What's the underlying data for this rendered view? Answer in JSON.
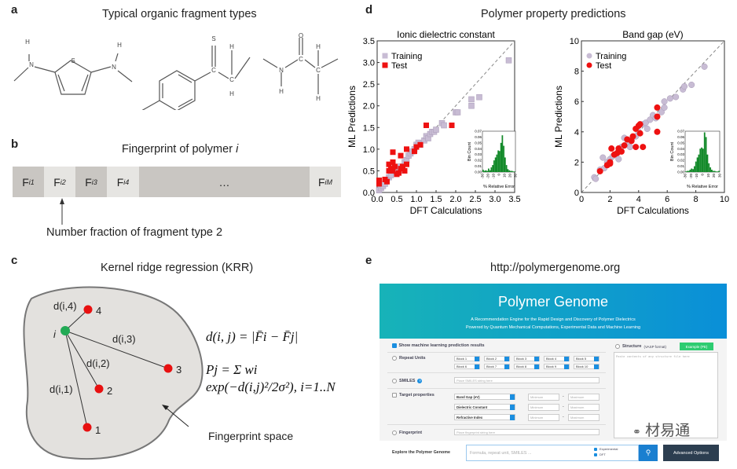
{
  "panels": {
    "a": {
      "letter": "a",
      "title": "Typical organic fragment types",
      "atoms": {
        "H": "H",
        "N": "N",
        "S": "S",
        "C": "C",
        "O": "O"
      }
    },
    "b": {
      "letter": "b",
      "title": "Fingerprint of polymer ",
      "title_var": "i",
      "cells": [
        {
          "F": "F",
          "sub": "i1"
        },
        {
          "F": "F",
          "sub": "i2"
        },
        {
          "F": "F",
          "sub": "i3"
        },
        {
          "F": "F",
          "sub": "i4"
        },
        {
          "F": "…",
          "sub": ""
        },
        {
          "F": "F",
          "sub": "iM"
        }
      ],
      "caption": "Number fraction of fragment type 2"
    },
    "c": {
      "letter": "c",
      "title": "Kernel ridge regression (KRR)",
      "points": {
        "i": "i",
        "p1": "1",
        "p2": "2",
        "p3": "3",
        "p4": "4"
      },
      "distances": {
        "d1": "d(i,1)",
        "d2": "d(i,2)",
        "d3": "d(i,3)",
        "d4": "d(i,4)"
      },
      "formula1": "d(i, j) = |F̄i − F̄j|",
      "formula2": "Pj = Σ wi exp(−d(i,j)²/2σ²), i=1..N",
      "space_label": "Fingerprint space",
      "colors": {
        "i": "#22aa55",
        "points": "#e81010"
      }
    },
    "d": {
      "letter": "d",
      "title": "Polymer property predictions"
    },
    "e": {
      "letter": "e",
      "title": "http://polymergenome.org"
    }
  },
  "chart_data": [
    {
      "type": "scatter",
      "title": "Ionic dielectric constant",
      "xlabel": "DFT Calculations",
      "ylabel": "ML Predictions",
      "xlim": [
        0,
        3.5
      ],
      "ylim": [
        0,
        3.5
      ],
      "ticks": [
        "0.0",
        "0.5",
        "1.0",
        "1.5",
        "2.0",
        "2.5",
        "3.0",
        "3.5"
      ],
      "marker": "square",
      "legend_position": "top-left",
      "diagonal": true,
      "series": [
        {
          "name": "Training",
          "color": "#c8bcd4",
          "points": [
            [
              0.05,
              0.05
            ],
            [
              0.1,
              0.1
            ],
            [
              0.15,
              0.15
            ],
            [
              0.2,
              0.2
            ],
            [
              0.3,
              0.35
            ],
            [
              0.35,
              0.4
            ],
            [
              0.45,
              0.5
            ],
            [
              0.5,
              0.55
            ],
            [
              0.55,
              0.5
            ],
            [
              0.6,
              0.6
            ],
            [
              0.7,
              0.7
            ],
            [
              0.75,
              0.75
            ],
            [
              0.8,
              0.85
            ],
            [
              0.85,
              0.9
            ],
            [
              0.9,
              0.95
            ],
            [
              0.95,
              1.0
            ],
            [
              1.0,
              1.1
            ],
            [
              1.05,
              1.15
            ],
            [
              1.1,
              1.1
            ],
            [
              1.2,
              1.2
            ],
            [
              1.25,
              1.3
            ],
            [
              1.3,
              1.25
            ],
            [
              1.35,
              1.35
            ],
            [
              1.4,
              1.4
            ],
            [
              1.45,
              1.4
            ],
            [
              1.5,
              1.45
            ],
            [
              1.65,
              1.6
            ],
            [
              1.7,
              1.55
            ],
            [
              2.0,
              1.85
            ],
            [
              2.05,
              1.85
            ],
            [
              2.4,
              2.0
            ],
            [
              2.4,
              2.15
            ],
            [
              2.6,
              2.2
            ],
            [
              3.35,
              3.05
            ]
          ]
        },
        {
          "name": "Test",
          "color": "#ee1111",
          "points": [
            [
              0.05,
              0.2
            ],
            [
              0.05,
              0.28
            ],
            [
              0.2,
              0.3
            ],
            [
              0.25,
              0.25
            ],
            [
              0.3,
              0.5
            ],
            [
              0.3,
              0.65
            ],
            [
              0.35,
              0.55
            ],
            [
              0.4,
              0.7
            ],
            [
              0.4,
              0.93
            ],
            [
              0.4,
              0.5
            ],
            [
              0.45,
              0.6
            ],
            [
              0.5,
              0.42
            ],
            [
              0.55,
              0.45
            ],
            [
              0.6,
              0.55
            ],
            [
              0.6,
              0.85
            ],
            [
              0.65,
              0.6
            ],
            [
              0.7,
              0.5
            ],
            [
              0.75,
              1.0
            ],
            [
              0.75,
              0.65
            ],
            [
              0.95,
              0.95
            ],
            [
              1.0,
              1.05
            ],
            [
              1.1,
              1.1
            ],
            [
              1.25,
              1.55
            ],
            [
              1.9,
              1.55
            ]
          ]
        }
      ],
      "inset": {
        "type": "bar",
        "xlabel": "% Relative Error",
        "ylabel": "Bin Count",
        "xlim": [
          -30,
          30
        ],
        "ylim": [
          0,
          0.07
        ],
        "yticks": [
          "0.00",
          "0.01",
          "0.02",
          "0.03",
          "0.04",
          "0.05",
          "0.06",
          "0.07"
        ],
        "xticks": [
          "-30",
          "-20",
          "-10",
          "0",
          "10",
          "20",
          "30"
        ],
        "color": "#138a2a",
        "bin_start": -30,
        "bin_width": 2.5,
        "values": [
          0.004,
          0.002,
          0.003,
          0.002,
          0.006,
          0.003,
          0.008,
          0.012,
          0.02,
          0.025,
          0.03,
          0.037,
          0.036,
          0.05,
          0.063,
          0.045,
          0.025,
          0.012,
          0.005,
          0.003,
          0.002,
          0.002,
          0.001,
          0.001
        ]
      }
    },
    {
      "type": "scatter",
      "title": "Band gap (eV)",
      "xlabel": "DFT Calculations",
      "ylabel": "ML Predictions",
      "xlim": [
        0,
        10
      ],
      "ylim": [
        0,
        10
      ],
      "ticks": [
        "0",
        "2",
        "4",
        "6",
        "8",
        "10"
      ],
      "marker": "circle",
      "legend_position": "top-left",
      "diagonal": true,
      "series": [
        {
          "name": "Training",
          "color": "#c8bcd4",
          "points": [
            [
              0.9,
              1.0
            ],
            [
              1.0,
              0.9
            ],
            [
              1.3,
              1.5
            ],
            [
              1.5,
              2.3
            ],
            [
              1.6,
              1.6
            ],
            [
              1.8,
              2.0
            ],
            [
              2.0,
              2.2
            ],
            [
              2.2,
              2.4
            ],
            [
              2.5,
              2.6
            ],
            [
              2.8,
              3.0
            ],
            [
              3.0,
              3.6
            ],
            [
              3.2,
              3.2
            ],
            [
              3.5,
              3.5
            ],
            [
              3.8,
              3.7
            ],
            [
              4.0,
              4.0
            ],
            [
              4.3,
              4.5
            ],
            [
              4.5,
              4.6
            ],
            [
              4.8,
              4.8
            ],
            [
              5.0,
              5.1
            ],
            [
              5.2,
              4.9
            ],
            [
              5.6,
              5.3
            ],
            [
              5.8,
              5.6
            ],
            [
              5.8,
              6.0
            ],
            [
              6.2,
              6.2
            ],
            [
              6.6,
              6.3
            ],
            [
              7.1,
              6.8
            ],
            [
              7.2,
              7.0
            ],
            [
              7.7,
              7.1
            ],
            [
              8.6,
              8.3
            ],
            [
              2.6,
              2.2
            ],
            [
              3.4,
              3.0
            ],
            [
              4.6,
              4.2
            ]
          ]
        },
        {
          "name": "Test",
          "color": "#ee1111",
          "points": [
            [
              1.3,
              1.4
            ],
            [
              1.8,
              1.8
            ],
            [
              2.0,
              1.9
            ],
            [
              2.0,
              2.0
            ],
            [
              2.1,
              2.9
            ],
            [
              2.3,
              2.5
            ],
            [
              2.5,
              2.6
            ],
            [
              2.6,
              2.9
            ],
            [
              2.8,
              2.7
            ],
            [
              3.0,
              3.1
            ],
            [
              3.2,
              3.5
            ],
            [
              3.5,
              3.4
            ],
            [
              3.6,
              3.7
            ],
            [
              3.8,
              3.0
            ],
            [
              3.8,
              4.2
            ],
            [
              4.0,
              4.4
            ],
            [
              4.1,
              4.5
            ],
            [
              4.1,
              3.9
            ],
            [
              4.3,
              3.0
            ],
            [
              5.3,
              5.6
            ],
            [
              5.3,
              5.0
            ],
            [
              5.3,
              4.0
            ]
          ]
        }
      ],
      "inset": {
        "type": "bar",
        "xlabel": "% Relative Error",
        "ylabel": "Bin Count",
        "xlim": [
          -30,
          30
        ],
        "ylim": [
          0,
          0.07
        ],
        "yticks": [
          "0.00",
          "0.01",
          "0.02",
          "0.03",
          "0.04",
          "0.05",
          "0.06",
          "0.07"
        ],
        "xticks": [
          "-30",
          "-20",
          "-10",
          "0",
          "10",
          "20",
          "30"
        ],
        "color": "#138a2a",
        "bin_start": -30,
        "bin_width": 2.5,
        "values": [
          0.001,
          0.002,
          0.002,
          0.004,
          0.006,
          0.005,
          0.01,
          0.018,
          0.025,
          0.03,
          0.04,
          0.042,
          0.04,
          0.068,
          0.06,
          0.03,
          0.015,
          0.008,
          0.004,
          0.002,
          0.002,
          0.001,
          0.001,
          0.002
        ]
      }
    }
  ],
  "web": {
    "title": "Polymer Genome",
    "subtitle1": "A Recommendation Engine for the Rapid Design and Discovery of Polymer Dielectrics",
    "subtitle2": "Powered by Quantum Mechanical Computations, Experimental Data and Machine Learning",
    "show_ml": "Show machine learning prediction results",
    "repeat_units": "Repeat Units",
    "blocks": [
      "Block 1",
      "Block 2",
      "Block 3",
      "Block 4",
      "Block 5",
      "Block 6",
      "Block 7",
      "Block 8",
      "Block 9",
      "Block 10"
    ],
    "smiles": "SMILES",
    "smiles_placeholder": "Place SMILES string here",
    "target": "Target properties",
    "properties": [
      "Band Gap (eV)",
      "Dielectric Constant",
      "Refractive Index"
    ],
    "min_placeholder": "Minimum",
    "max_placeholder": "Maximum",
    "dash": "-",
    "fingerprint": "Fingerprint",
    "fingerprint_placeholder": "Place fingerprint string here",
    "structure": "Structure",
    "structure_format": "(VASP format)",
    "example": "Example (PE)",
    "structure_placeholder": "Paste contents of any structure file here",
    "explore": "Explore the Polymer Genome",
    "search_placeholder": "Formula, repeat unit, SMILES ...",
    "opt_experimental": "Experimental",
    "opt_dft": "DFT",
    "advanced": "Advanced Options",
    "watermark": "材易通",
    "colors": {
      "header_start": "#17b3b8",
      "header_end": "#0a8fd8",
      "accent": "#1a8ee0",
      "example": "#2ecc71",
      "advanced": "#2c3e50"
    }
  }
}
